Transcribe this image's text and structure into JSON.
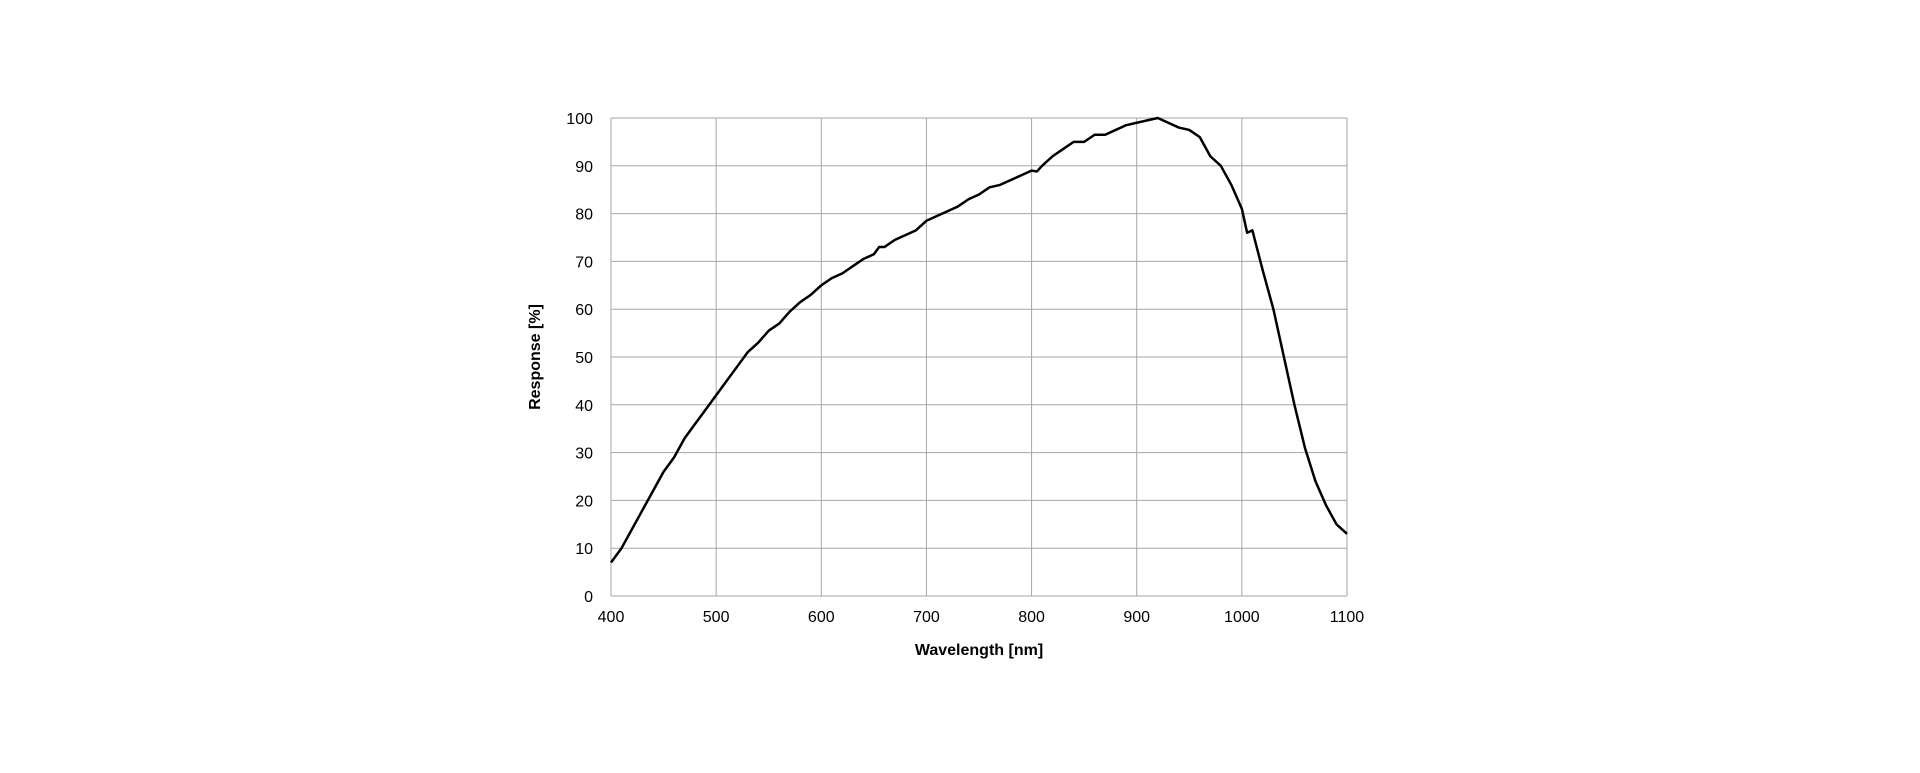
{
  "chart_data": {
    "type": "line",
    "x_label": "Wavelength  [nm]",
    "y_label": "Response [%]",
    "x": [
      400,
      410,
      420,
      430,
      440,
      450,
      460,
      470,
      480,
      490,
      500,
      510,
      520,
      530,
      540,
      550,
      560,
      570,
      580,
      590,
      600,
      610,
      620,
      630,
      640,
      650,
      655,
      660,
      670,
      680,
      690,
      700,
      710,
      720,
      730,
      740,
      750,
      760,
      770,
      780,
      790,
      800,
      805,
      810,
      820,
      830,
      840,
      850,
      860,
      870,
      880,
      890,
      900,
      910,
      920,
      930,
      940,
      950,
      960,
      970,
      980,
      990,
      1000,
      1005,
      1010,
      1020,
      1030,
      1040,
      1050,
      1060,
      1070,
      1080,
      1090,
      1100
    ],
    "series": [
      {
        "color": "#000000",
        "values": [
          7,
          10,
          14,
          18,
          22,
          26,
          29,
          33,
          36,
          39,
          42,
          45,
          48,
          51,
          53,
          55.5,
          57,
          59.5,
          61.5,
          63,
          65,
          66.5,
          67.5,
          69,
          70.5,
          71.5,
          73,
          73,
          74.5,
          75.5,
          76.5,
          78.5,
          79.5,
          80.5,
          81.5,
          83,
          84,
          85.5,
          86,
          87,
          88,
          89,
          88.8,
          90,
          92,
          93.5,
          95,
          95,
          96.5,
          96.5,
          97.5,
          98.5,
          99,
          99.5,
          100,
          99,
          98,
          97.5,
          96,
          92,
          90,
          86,
          81,
          76,
          76.5,
          68,
          60,
          50,
          40,
          31,
          24,
          19,
          15,
          13
        ]
      }
    ],
    "xlim": [
      400,
      1100
    ],
    "xticks": [
      400,
      500,
      600,
      700,
      800,
      900,
      1000,
      1100
    ],
    "ylim": [
      0,
      100
    ],
    "yticks": [
      0,
      10,
      20,
      30,
      40,
      50,
      60,
      70,
      80,
      90,
      100
    ],
    "grid": true,
    "grid_color": "#a6a6a6"
  }
}
